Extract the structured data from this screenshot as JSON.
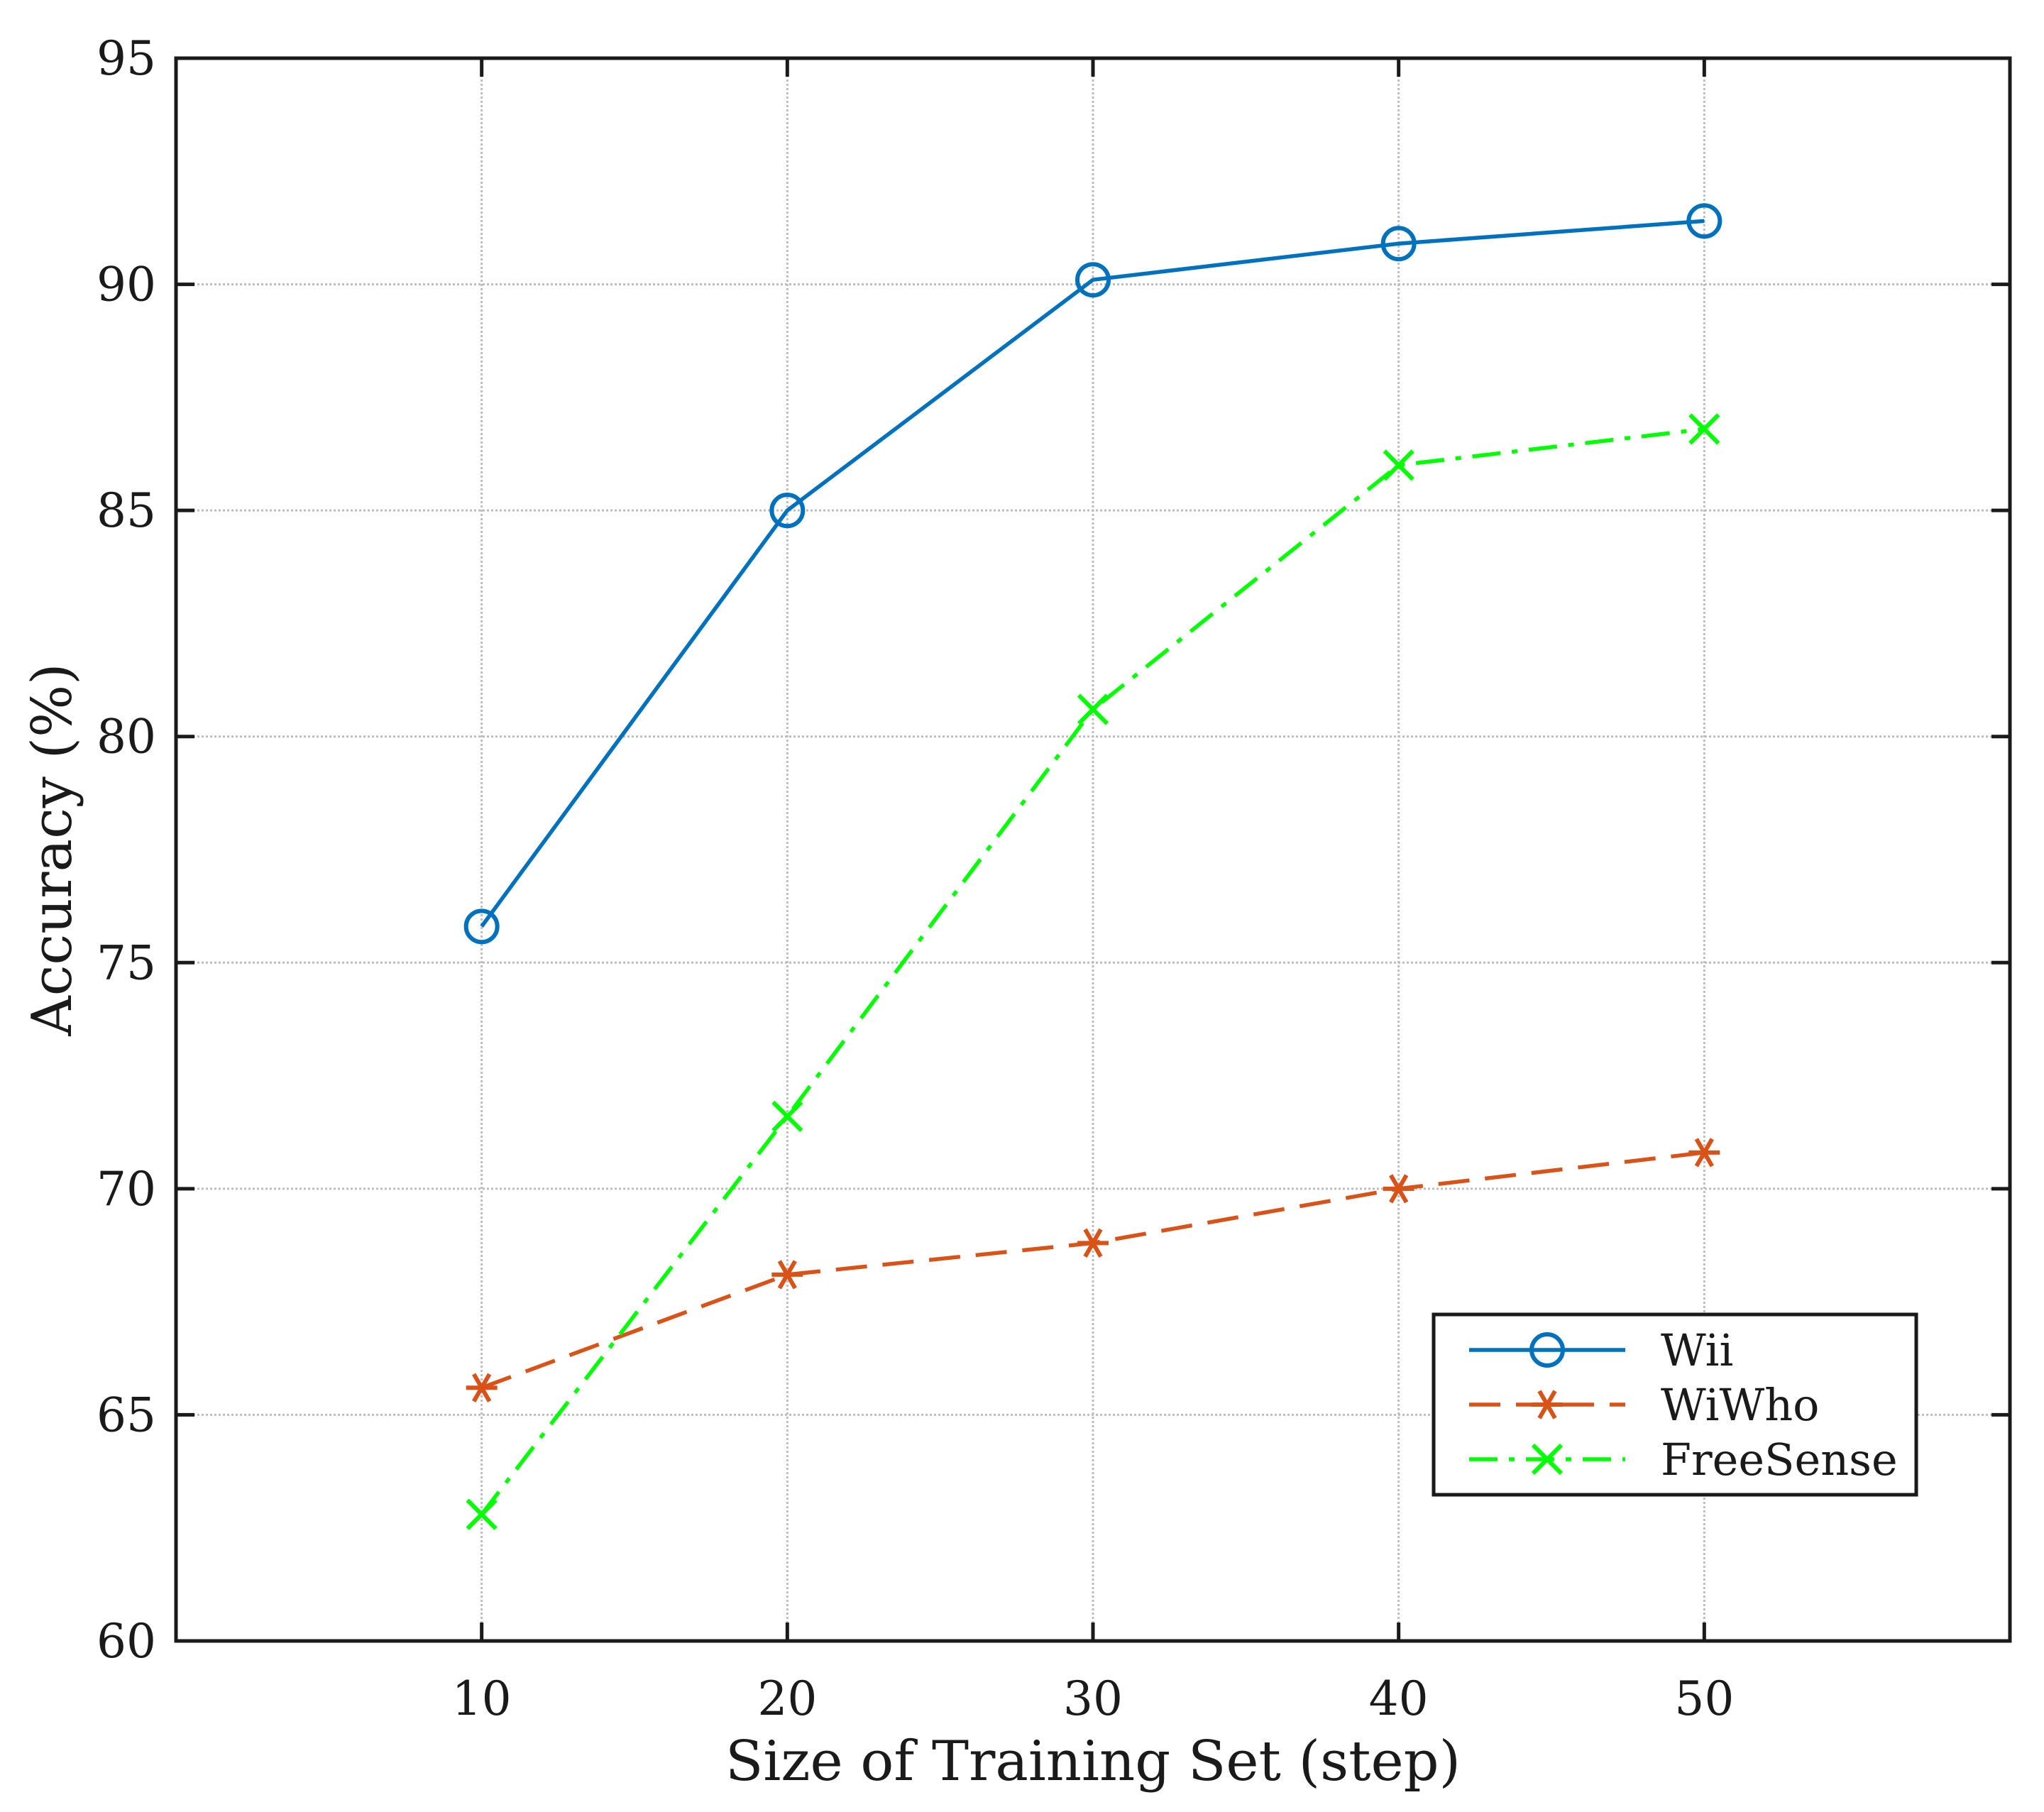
{
  "chart_data": {
    "type": "line",
    "title": "",
    "xlabel": "Size of Training Set (step)",
    "ylabel": "Accuracy (%)",
    "x": [
      10,
      20,
      30,
      40,
      50
    ],
    "xlim": [
      0,
      60
    ],
    "ylim": [
      60,
      95
    ],
    "xticks": [
      10,
      20,
      30,
      40,
      50
    ],
    "yticks": [
      60,
      65,
      70,
      75,
      80,
      85,
      90,
      95
    ],
    "grid": true,
    "legend_position": "bottom-right",
    "series": [
      {
        "name": "Wii",
        "color": "#0072bd",
        "dash": "solid",
        "marker": "circle",
        "values": [
          75.8,
          85.0,
          90.1,
          90.9,
          91.4
        ]
      },
      {
        "name": "WiWho",
        "color": "#d95319",
        "dash": "dashed",
        "marker": "asterisk",
        "values": [
          65.6,
          68.1,
          68.8,
          70.0,
          70.8
        ]
      },
      {
        "name": "FreeSense",
        "color": "#00ff00",
        "dash": "dashdot",
        "marker": "x",
        "values": [
          62.8,
          71.6,
          80.6,
          86.0,
          86.8
        ]
      }
    ]
  }
}
